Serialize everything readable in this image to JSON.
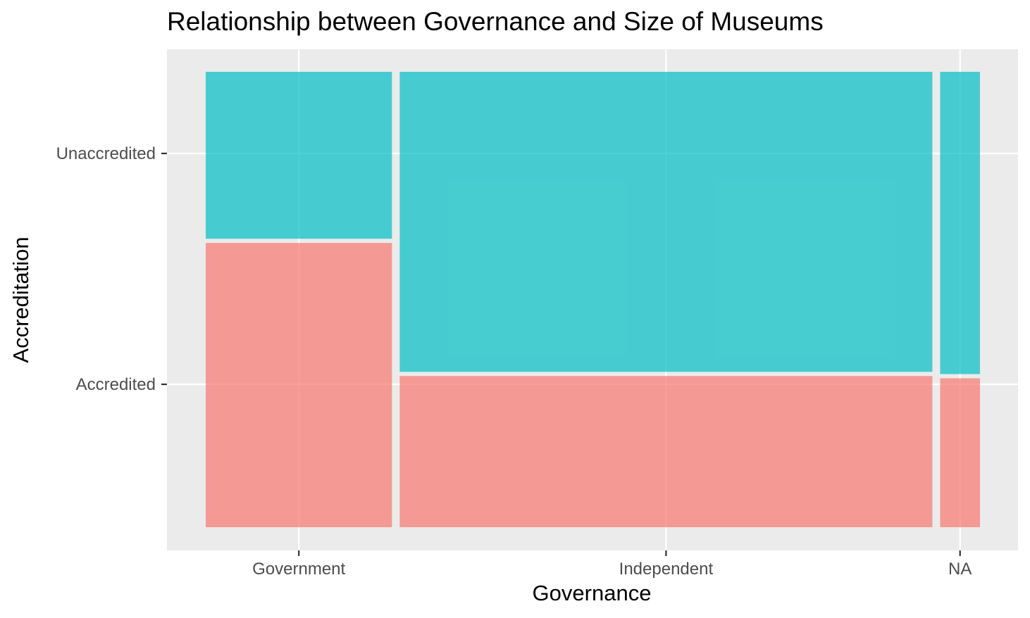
{
  "chart_data": {
    "type": "mosaic",
    "title": "Relationship between Governance and Size of Museums",
    "xlabel": "Governance",
    "ylabel": "Accreditation",
    "categories": [
      "Government",
      "Independent",
      "NA"
    ],
    "column_widths": [
      0.243,
      0.695,
      0.052
    ],
    "series": [
      {
        "name": "Accredited",
        "values": [
          0.63,
          0.335,
          0.33
        ],
        "color": "#F8766D"
      },
      {
        "name": "Unaccredited",
        "values": [
          0.37,
          0.665,
          0.67
        ],
        "color": "#00BFC4"
      }
    ],
    "y_ticks": [
      "Accredited",
      "Unaccredited"
    ],
    "x_ticks": [
      "Government",
      "Independent",
      "NA"
    ],
    "grid": true,
    "legend": "none",
    "panel_background": "#EBEBEB"
  }
}
